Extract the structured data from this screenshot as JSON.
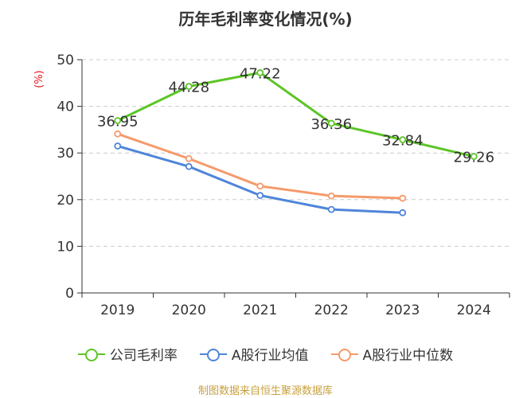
{
  "chart_data": {
    "type": "line",
    "title": "历年毛利率变化情况(%)",
    "ylabel": "(%)",
    "xlabel": "",
    "categories": [
      "2019",
      "2020",
      "2021",
      "2022",
      "2023",
      "2024"
    ],
    "ylim": [
      0,
      50
    ],
    "yticks": [
      0,
      10,
      20,
      30,
      40,
      50
    ],
    "grid": true,
    "legend_position": "bottom",
    "series": [
      {
        "name": "公司毛利率",
        "color": "#5cc526",
        "values": [
          36.95,
          44.28,
          47.22,
          36.36,
          32.84,
          29.26
        ],
        "labels": [
          "36.95",
          "44.28",
          "47.22",
          "36.36",
          "32.84",
          "29.26"
        ]
      },
      {
        "name": "A股行业均值",
        "color": "#4f85d9",
        "values": [
          31.5,
          27.1,
          20.9,
          17.9,
          17.2,
          null
        ]
      },
      {
        "name": "A股行业中位数",
        "color": "#f59a6b",
        "values": [
          34.1,
          28.8,
          22.9,
          20.8,
          20.3,
          null
        ]
      }
    ]
  },
  "source": "制图数据来自恒生聚源数据库"
}
